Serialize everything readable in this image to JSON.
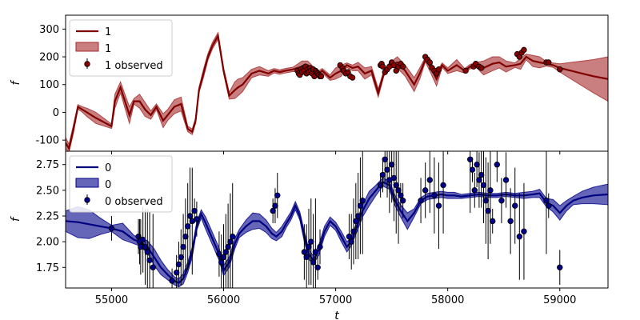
{
  "chart_data": [
    {
      "type": "line",
      "panel": "top",
      "xlabel": "",
      "ylabel": "f",
      "xlim": [
        54590,
        59430
      ],
      "ylim": [
        -140,
        350
      ],
      "yticks": [
        -100,
        0,
        100,
        200,
        300
      ],
      "colors": {
        "line": "#800000",
        "band": "#a52a2a",
        "marker": "#8b0000"
      },
      "legend": {
        "placement": "top-left",
        "entries": [
          "1",
          "1",
          "1 observed"
        ]
      },
      "series": [
        {
          "name": "1",
          "kind": "gp-mean",
          "x": [
            54590,
            54620,
            54660,
            54700,
            54740,
            54780,
            54860,
            55000,
            55030,
            55080,
            55120,
            55160,
            55200,
            55250,
            55300,
            55350,
            55400,
            55460,
            55500,
            55560,
            55620,
            55680,
            55720,
            55750,
            55780,
            55820,
            55860,
            55900,
            55950,
            56000,
            56050,
            56100,
            56130,
            56170,
            56210,
            56250,
            56320,
            56400,
            56450,
            56500,
            56550,
            56620,
            56700,
            56750,
            56800,
            56850,
            56880,
            56950,
            57000,
            57050,
            57100,
            57150,
            57200,
            57260,
            57320,
            57380,
            57430,
            57480,
            57550,
            57620,
            57700,
            57750,
            57800,
            57850,
            57900,
            57950,
            58000,
            58080,
            58150,
            58200,
            58260,
            58320,
            58400,
            58460,
            58520,
            58600,
            58650,
            58700,
            58760,
            58820,
            58880,
            58940,
            59000,
            59100,
            59200,
            59300,
            59430
          ],
          "y": [
            -110,
            -130,
            -60,
            20,
            10,
            0,
            -20,
            -50,
            40,
            90,
            40,
            -10,
            40,
            40,
            10,
            -10,
            20,
            -30,
            -10,
            20,
            30,
            -60,
            -70,
            -30,
            80,
            140,
            200,
            240,
            275,
            150,
            60,
            80,
            90,
            100,
            120,
            140,
            150,
            140,
            150,
            145,
            150,
            155,
            165,
            170,
            155,
            140,
            150,
            125,
            140,
            150,
            170,
            160,
            165,
            140,
            150,
            70,
            140,
            170,
            180,
            150,
            100,
            140,
            190,
            160,
            120,
            170,
            150,
            170,
            150,
            165,
            170,
            160,
            175,
            180,
            165,
            170,
            175,
            200,
            185,
            180,
            175,
            170,
            160,
            150,
            140,
            130,
            120
          ]
        },
        {
          "name": "1",
          "kind": "gp-uncertainty",
          "x": [
            54590,
            54620,
            54660,
            54700,
            54740,
            54780,
            54860,
            55000,
            55030,
            55080,
            55120,
            55160,
            55200,
            55250,
            55300,
            55350,
            55400,
            55460,
            55500,
            55560,
            55620,
            55680,
            55720,
            55750,
            55780,
            55820,
            55860,
            55900,
            55950,
            56000,
            56050,
            56100,
            56130,
            56170,
            56210,
            56250,
            56320,
            56400,
            56450,
            56500,
            56550,
            56620,
            56700,
            56750,
            56800,
            56850,
            56880,
            56950,
            57000,
            57050,
            57100,
            57150,
            57200,
            57260,
            57320,
            57380,
            57430,
            57480,
            57550,
            57620,
            57700,
            57750,
            57800,
            57850,
            57900,
            57950,
            58000,
            58080,
            58150,
            58200,
            58260,
            58320,
            58400,
            58460,
            58520,
            58600,
            58650,
            58700,
            58760,
            58820,
            58880,
            58940,
            59000,
            59100,
            59200,
            59300,
            59430
          ],
          "halfwidth": [
            20,
            15,
            15,
            8,
            10,
            15,
            20,
            8,
            25,
            20,
            25,
            30,
            10,
            25,
            25,
            15,
            10,
            25,
            20,
            25,
            25,
            10,
            10,
            10,
            10,
            15,
            12,
            12,
            12,
            10,
            12,
            30,
            30,
            25,
            20,
            15,
            15,
            10,
            8,
            8,
            8,
            8,
            20,
            15,
            10,
            10,
            8,
            10,
            20,
            20,
            8,
            10,
            15,
            20,
            15,
            15,
            10,
            8,
            20,
            20,
            25,
            20,
            8,
            20,
            25,
            8,
            10,
            20,
            8,
            8,
            10,
            25,
            25,
            20,
            20,
            8,
            20,
            10,
            20,
            20,
            8,
            8,
            15,
            30,
            45,
            60,
            80
          ]
        },
        {
          "name": "1 observed",
          "kind": "observed",
          "x": [
            56660,
            56670,
            56680,
            56690,
            56700,
            56710,
            56720,
            56730,
            56740,
            56750,
            56760,
            56770,
            56780,
            56790,
            56800,
            56810,
            56820,
            56830,
            56840,
            56850,
            56860,
            56870,
            57040,
            57060,
            57070,
            57090,
            57110,
            57130,
            57150,
            57400,
            57410,
            57420,
            57440,
            57460,
            57480,
            57500,
            57520,
            57540,
            57560,
            57580,
            57600,
            57800,
            57820,
            57840,
            57860,
            57880,
            57900,
            57920,
            58160,
            58230,
            58250,
            58280,
            58300,
            58620,
            58640,
            58660,
            58680,
            58880,
            58900,
            59000
          ],
          "y": [
            150,
            140,
            135,
            155,
            145,
            160,
            150,
            165,
            140,
            155,
            145,
            160,
            150,
            140,
            155,
            130,
            150,
            145,
            140,
            135,
            130,
            130,
            170,
            160,
            150,
            140,
            145,
            130,
            125,
            170,
            175,
            165,
            145,
            155,
            165,
            180,
            170,
            150,
            165,
            175,
            165,
            200,
            190,
            180,
            160,
            150,
            140,
            155,
            150,
            165,
            175,
            165,
            160,
            210,
            200,
            215,
            225,
            180,
            180,
            155
          ]
        }
      ]
    },
    {
      "type": "line",
      "panel": "bottom",
      "xlabel": "t",
      "ylabel": "f",
      "xlim": [
        54590,
        59430
      ],
      "ylim": [
        1.55,
        2.88
      ],
      "yticks": [
        1.75,
        2.0,
        2.25,
        2.5,
        2.75
      ],
      "xticks": [
        55000,
        56000,
        57000,
        58000,
        59000
      ],
      "colors": {
        "line": "#000080",
        "band": "#00008b",
        "marker": "#00008b"
      },
      "legend": {
        "placement": "top-left",
        "entries": [
          "0",
          "0",
          "0 observed"
        ]
      },
      "series": [
        {
          "name": "0",
          "kind": "gp-mean",
          "x": [
            54590,
            54700,
            54800,
            54900,
            55000,
            55100,
            55200,
            55250,
            55320,
            55380,
            55440,
            55500,
            55560,
            55600,
            55640,
            55680,
            55720,
            55760,
            55800,
            55840,
            55880,
            55920,
            55960,
            56000,
            56050,
            56100,
            56140,
            56200,
            56260,
            56320,
            56380,
            56430,
            56470,
            56520,
            56560,
            56600,
            56640,
            56680,
            56720,
            56760,
            56800,
            56850,
            56900,
            56950,
            57000,
            57050,
            57100,
            57140,
            57180,
            57240,
            57300,
            57360,
            57420,
            57480,
            57530,
            57580,
            57640,
            57700,
            57760,
            57820,
            57880,
            57940,
            58000,
            58060,
            58120,
            58200,
            58280,
            58360,
            58440,
            58520,
            58600,
            58680,
            58760,
            58820,
            58880,
            58940,
            59000,
            59060,
            59120,
            59200,
            59300,
            59430
          ],
          "y": [
            2.2,
            2.19,
            2.17,
            2.15,
            2.13,
            2.1,
            2.02,
            2.0,
            1.95,
            1.85,
            1.75,
            1.68,
            1.62,
            1.6,
            1.64,
            1.75,
            1.9,
            2.15,
            2.27,
            2.18,
            2.08,
            1.98,
            1.88,
            1.72,
            1.8,
            1.98,
            2.08,
            2.15,
            2.2,
            2.2,
            2.15,
            2.08,
            2.05,
            2.1,
            2.18,
            2.25,
            2.35,
            2.25,
            2.05,
            1.88,
            1.82,
            1.92,
            2.1,
            2.2,
            2.15,
            2.05,
            1.95,
            2.0,
            2.12,
            2.3,
            2.42,
            2.5,
            2.58,
            2.55,
            2.4,
            2.3,
            2.2,
            2.28,
            2.4,
            2.44,
            2.45,
            2.46,
            2.45,
            2.45,
            2.44,
            2.45,
            2.46,
            2.45,
            2.45,
            2.46,
            2.45,
            2.45,
            2.46,
            2.47,
            2.38,
            2.35,
            2.28,
            2.35,
            2.4,
            2.43,
            2.45,
            2.46
          ]
        },
        {
          "name": "0",
          "kind": "gp-uncertainty",
          "x": [
            54590,
            54700,
            54800,
            54900,
            55000,
            55100,
            55200,
            55250,
            55320,
            55380,
            55440,
            55500,
            55560,
            55600,
            55640,
            55680,
            55720,
            55760,
            55800,
            55840,
            55880,
            55920,
            55960,
            56000,
            56050,
            56100,
            56140,
            56200,
            56260,
            56320,
            56380,
            56430,
            56470,
            56520,
            56560,
            56600,
            56640,
            56680,
            56720,
            56760,
            56800,
            56850,
            56900,
            56950,
            57000,
            57050,
            57100,
            57140,
            57180,
            57240,
            57300,
            57360,
            57420,
            57480,
            57530,
            57580,
            57640,
            57700,
            57760,
            57820,
            57880,
            57940,
            58000,
            58060,
            58120,
            58200,
            58280,
            58360,
            58440,
            58520,
            58600,
            58680,
            58760,
            58820,
            58880,
            58940,
            59000,
            59060,
            59120,
            59200,
            59300,
            59430
          ],
          "halfwidth": [
            0.1,
            0.15,
            0.14,
            0.08,
            0.03,
            0.08,
            0.04,
            0.04,
            0.06,
            0.08,
            0.07,
            0.05,
            0.04,
            0.04,
            0.05,
            0.05,
            0.05,
            0.04,
            0.04,
            0.06,
            0.06,
            0.06,
            0.06,
            0.05,
            0.05,
            0.05,
            0.04,
            0.06,
            0.08,
            0.07,
            0.06,
            0.05,
            0.04,
            0.05,
            0.04,
            0.04,
            0.04,
            0.04,
            0.05,
            0.05,
            0.04,
            0.05,
            0.05,
            0.04,
            0.04,
            0.05,
            0.05,
            0.04,
            0.05,
            0.06,
            0.07,
            0.05,
            0.04,
            0.04,
            0.05,
            0.06,
            0.08,
            0.04,
            0.03,
            0.03,
            0.03,
            0.03,
            0.03,
            0.03,
            0.02,
            0.02,
            0.02,
            0.02,
            0.02,
            0.02,
            0.02,
            0.03,
            0.03,
            0.04,
            0.04,
            0.06,
            0.07,
            0.05,
            0.04,
            0.06,
            0.08,
            0.1
          ]
        },
        {
          "name": "0 observed",
          "kind": "observed",
          "x": [
            55000,
            55240,
            55250,
            55260,
            55280,
            55300,
            55320,
            55340,
            55370,
            55540,
            55580,
            55600,
            55620,
            55640,
            55660,
            55680,
            55700,
            55720,
            55740,
            55760,
            55960,
            55980,
            56000,
            56020,
            56040,
            56060,
            56080,
            56440,
            56460,
            56480,
            56720,
            56740,
            56760,
            56780,
            56800,
            56820,
            56840,
            56860,
            57120,
            57140,
            57160,
            57180,
            57200,
            57220,
            57240,
            57400,
            57420,
            57440,
            57460,
            57480,
            57500,
            57520,
            57540,
            57560,
            57580,
            57600,
            57760,
            57800,
            57840,
            57880,
            57920,
            57960,
            58200,
            58220,
            58240,
            58260,
            58280,
            58300,
            58320,
            58340,
            58360,
            58380,
            58400,
            58440,
            58480,
            58520,
            58560,
            58600,
            58640,
            58680,
            58880,
            58900,
            59000
          ],
          "y": [
            2.13,
            2.05,
            2.0,
            1.95,
            2.02,
            1.95,
            1.9,
            1.82,
            1.75,
            1.62,
            1.7,
            1.78,
            1.85,
            1.95,
            2.05,
            2.15,
            2.25,
            2.2,
            2.3,
            2.22,
            1.88,
            1.8,
            1.85,
            1.9,
            1.95,
            2.0,
            2.05,
            2.3,
            2.35,
            2.45,
            1.9,
            1.85,
            1.95,
            2.0,
            1.8,
            1.9,
            1.75,
            1.95,
            2.05,
            2.0,
            2.1,
            2.2,
            2.25,
            2.35,
            2.4,
            2.55,
            2.65,
            2.8,
            2.7,
            2.6,
            2.75,
            2.62,
            2.55,
            2.5,
            2.45,
            2.4,
            2.4,
            2.5,
            2.6,
            2.45,
            2.35,
            2.55,
            2.8,
            2.7,
            2.5,
            2.75,
            2.6,
            2.65,
            2.55,
            2.4,
            2.3,
            2.5,
            2.2,
            2.75,
            2.4,
            2.6,
            2.2,
            2.35,
            2.05,
            2.1,
            2.4,
            2.35,
            1.75
          ]
        }
      ]
    }
  ]
}
